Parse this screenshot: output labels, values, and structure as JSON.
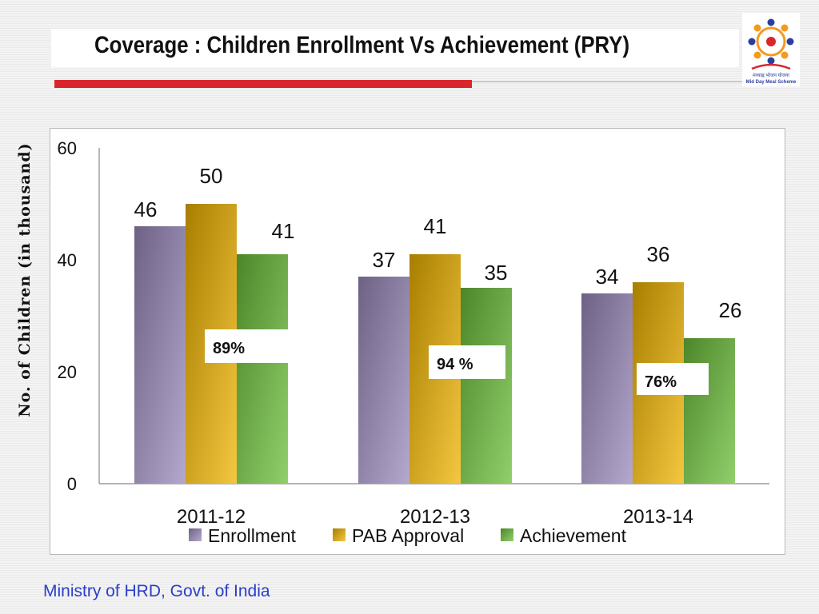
{
  "slide": {
    "title": "Coverage : Children Enrollment Vs Achievement (PRY)",
    "footer": "Ministry of HRD, Govt. of India",
    "logo_text": [
      "मध्याह्न भोजन योजना",
      "Mid Day Meal Scheme"
    ]
  },
  "chart_data": {
    "type": "bar",
    "categories": [
      "2011-12",
      "2012-13",
      "2013-14"
    ],
    "series": [
      {
        "name": "Enrollment",
        "values": [
          46,
          37,
          34
        ],
        "color": "#9b8bbd"
      },
      {
        "name": "PAB Approval",
        "values": [
          50,
          41,
          36
        ],
        "color": "#f0b400"
      },
      {
        "name": "Achievement",
        "values": [
          41,
          35,
          26
        ],
        "color": "#6cbf3a"
      }
    ],
    "annotations": [
      "89%",
      "94 %",
      "76%"
    ],
    "ylabel": "No. of Children (in thousand)",
    "xlabel": "",
    "ylim": [
      0,
      60
    ],
    "yticks": [
      0,
      20,
      40,
      60
    ],
    "legend": "bottom",
    "grid": false
  }
}
